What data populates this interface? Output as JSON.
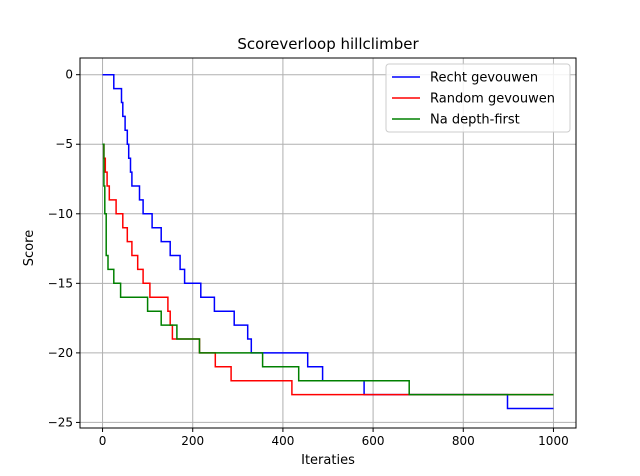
{
  "chart_data": {
    "type": "line",
    "title": "Scoreverloop hillclimber",
    "xlabel": "Iteraties",
    "ylabel": "Score",
    "xlim": [
      -50,
      1050
    ],
    "ylim": [
      -25.4,
      1.2
    ],
    "xticks": [
      0,
      200,
      400,
      600,
      800,
      1000
    ],
    "yticks": [
      0,
      -5,
      -10,
      -15,
      -20,
      -25
    ],
    "grid": true,
    "legend_position": "top-right",
    "step": "post",
    "series": [
      {
        "name": "Recht gevouwen",
        "color": "#0000ff",
        "x": [
          0,
          25,
          42,
          45,
          50,
          55,
          58,
          62,
          65,
          68,
          72,
          76,
          82,
          90,
          95,
          110,
          118,
          130,
          138,
          150,
          162,
          172,
          178,
          182,
          195,
          218,
          248,
          292,
          302,
          322,
          330,
          455,
          488,
          578,
          580,
          898,
          1000
        ],
        "y": [
          0,
          -1,
          -2,
          -3,
          -4,
          -5,
          -6,
          -7,
          -8,
          -8,
          -8,
          -8,
          -9,
          -10,
          -10,
          -11,
          -11,
          -12,
          -12,
          -13,
          -13,
          -14,
          -14,
          -15,
          -15,
          -16,
          -17,
          -18,
          -18,
          -19,
          -20,
          -21,
          -22,
          -22,
          -23,
          -24,
          -24
        ]
      },
      {
        "name": "Random gevouwen",
        "color": "#ff0000",
        "x": [
          0,
          3,
          6,
          10,
          15,
          20,
          30,
          45,
          55,
          65,
          78,
          90,
          105,
          145,
          150,
          155,
          165,
          215,
          250,
          285,
          420,
          1000
        ],
        "y": [
          -5,
          -6,
          -7,
          -8,
          -9,
          -9,
          -10,
          -11,
          -12,
          -13,
          -14,
          -15,
          -16,
          -17,
          -18,
          -19,
          -19,
          -20,
          -21,
          -22,
          -23,
          -23
        ]
      },
      {
        "name": "Na depth-first",
        "color": "#008000",
        "x": [
          0,
          3,
          5,
          8,
          12,
          25,
          40,
          100,
          130,
          165,
          215,
          355,
          435,
          680,
          1000
        ],
        "y": [
          -5,
          -8,
          -10,
          -13,
          -14,
          -15,
          -16,
          -17,
          -18,
          -19,
          -20,
          -21,
          -22,
          -23,
          -23
        ]
      }
    ]
  }
}
